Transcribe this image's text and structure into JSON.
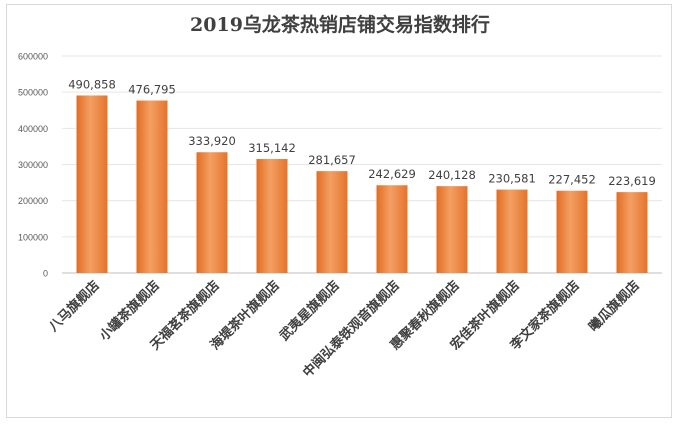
{
  "chart_data": {
    "type": "bar",
    "title": "2019乌龙茶热销店铺交易指数排行",
    "categories": [
      "八马旗舰店",
      "小罐茶旗舰店",
      "天福茗茶旗舰店",
      "海堤茶叶旗舰店",
      "武夷星旗舰店",
      "中闽弘泰铁观音旗舰店",
      "惠聚春秋旗舰店",
      "宏佳茶叶旗舰店",
      "李文家茶旗舰店",
      "曦瓜旗舰店"
    ],
    "values": [
      490858,
      476795,
      333920,
      315142,
      281657,
      242629,
      240128,
      230581,
      227452,
      223619
    ],
    "data_labels": [
      "490,858",
      "476,795",
      "333,920",
      "315,142",
      "281,657",
      "242,629",
      "240,128",
      "230,581",
      "227,452",
      "223,619"
    ],
    "yticks": [
      "0",
      "100000",
      "200000",
      "300000",
      "400000",
      "500000",
      "600000"
    ],
    "ylim": [
      0,
      600000
    ],
    "grid": true,
    "legend": false,
    "bar_color": "#ED7D31"
  }
}
